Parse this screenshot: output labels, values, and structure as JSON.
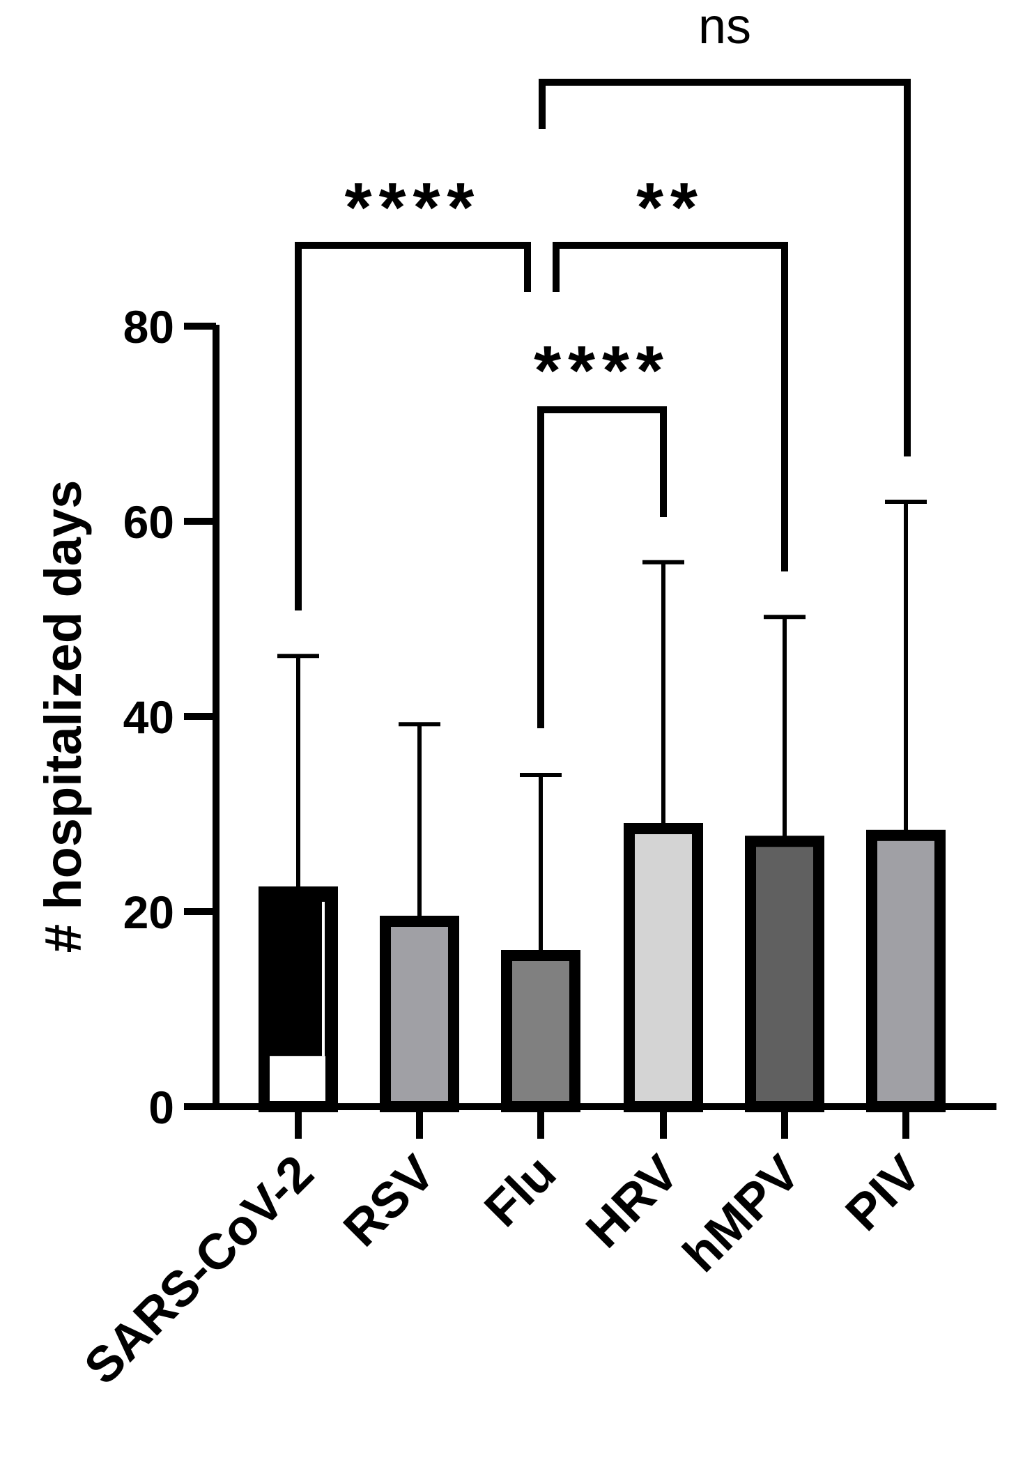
{
  "chart_data": {
    "type": "bar",
    "ylabel": "# hospitalized days",
    "xlabel": "",
    "ylim": [
      0,
      80
    ],
    "yticks": [
      0,
      20,
      40,
      60,
      80
    ],
    "grid": false,
    "categories": [
      "SARS-CoV-2",
      "RSV",
      "Flu",
      "HRV",
      "hMPV",
      "PIV"
    ],
    "values": [
      22,
      19,
      15.5,
      28.5,
      27.2,
      27.8
    ],
    "error_upper": [
      46.2,
      39.2,
      34,
      55.8,
      50.2,
      62
    ],
    "colors": [
      "#000000",
      "#a0a0a5",
      "#808080",
      "#d4d4d4",
      "#606060",
      "#a0a0a5"
    ],
    "significance": [
      {
        "from": "SARS-CoV-2",
        "to": "Flu",
        "label": "****"
      },
      {
        "from": "Flu",
        "to": "hMPV",
        "label": "**"
      },
      {
        "from": "Flu",
        "to": "HRV",
        "label": "****"
      },
      {
        "from": "Flu",
        "to": "PIV",
        "label": "ns"
      }
    ]
  }
}
